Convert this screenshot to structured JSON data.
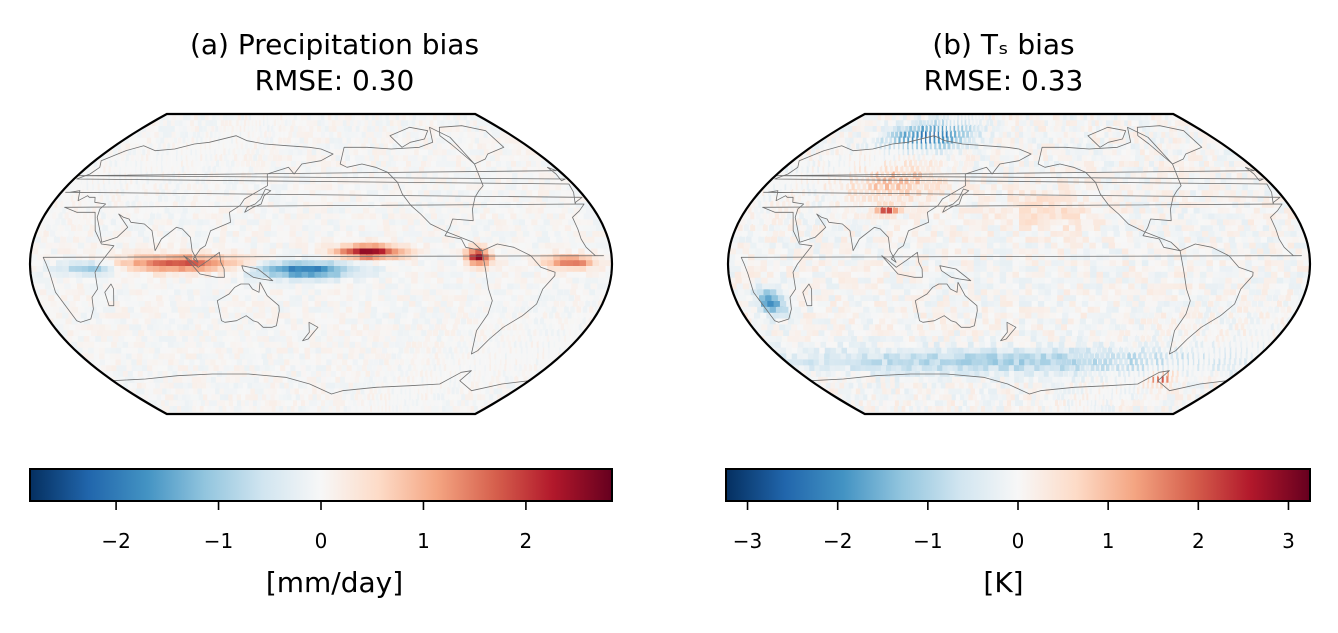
{
  "chart_data": [
    {
      "type": "heatmap",
      "panel": "a",
      "title": "(a) Precipitation bias",
      "subtitle": "RMSE: 0.30",
      "projection": "Robinson, centered on Pacific",
      "colormap": "RdBu_r",
      "colorbar": {
        "label": "[mm/day]",
        "range": [
          -2.85,
          2.85
        ],
        "ticks": [
          -2,
          -1,
          0,
          1,
          2
        ],
        "tick_labels": [
          "−2",
          "−1",
          "0",
          "1",
          "2"
        ]
      },
      "features": [
        {
          "description": "positive bias along northern ITCZ, east Pacific",
          "lon": [
            190,
            230
          ],
          "lat": [
            4,
            12
          ],
          "value": 2.5
        },
        {
          "description": "negative bias in western/central equatorial Pacific",
          "lon": [
            140,
            200
          ],
          "lat": [
            -8,
            2
          ],
          "value": -2.0
        },
        {
          "description": "positive bias over Indian Ocean / Maritime Continent",
          "lon": [
            55,
            130
          ],
          "lat": [
            -4,
            6
          ],
          "value": 1.8
        },
        {
          "description": "positive bias near Panama / east Pacific coast",
          "lon": [
            270,
            285
          ],
          "lat": [
            0,
            10
          ],
          "value": 2.4
        },
        {
          "description": "positive bias equatorial Atlantic",
          "lon": [
            320,
            350
          ],
          "lat": [
            -2,
            6
          ],
          "value": 1.6
        },
        {
          "description": "negative bias equatorial Africa / west Indian Ocean",
          "lon": [
            20,
            55
          ],
          "lat": [
            -6,
            2
          ],
          "value": -1.2
        }
      ]
    },
    {
      "type": "heatmap",
      "panel": "b",
      "title": "(b) Tₛ bias",
      "subtitle": "RMSE: 0.33",
      "projection": "Robinson, centered on Pacific",
      "colormap": "RdBu_r",
      "colorbar": {
        "label": "[K]",
        "range": [
          -3.25,
          3.25
        ],
        "ticks": [
          -3,
          -2,
          -1,
          0,
          1,
          2,
          3
        ],
        "tick_labels": [
          "−3",
          "−2",
          "−1",
          "0",
          "1",
          "2",
          "3"
        ]
      },
      "features": [
        {
          "description": "cold bias over Arctic / Siberian coast",
          "lon": [
            60,
            130
          ],
          "lat": [
            70,
            85
          ],
          "value": -2.5
        },
        {
          "description": "warm bias over Eurasia interior",
          "lon": [
            60,
            120
          ],
          "lat": [
            40,
            60
          ],
          "value": 1.0
        },
        {
          "description": "warm bias Tibetan plateau",
          "lon": [
            85,
            100
          ],
          "lat": [
            30,
            36
          ],
          "value": 2.0
        },
        {
          "description": "cold bias southern Africa",
          "lon": [
            15,
            30
          ],
          "lat": [
            -30,
            -15
          ],
          "value": -2.0
        },
        {
          "description": "cold bias Southern Ocean",
          "lon": [
            0,
            360
          ],
          "lat": [
            -65,
            -50
          ],
          "value": -1.0
        },
        {
          "description": "warm bias near Antarctic Peninsula",
          "lon": [
            290,
            310
          ],
          "lat": [
            -72,
            -64
          ],
          "value": 2.0
        },
        {
          "description": "slight warm bias northern Pacific",
          "lon": [
            170,
            230
          ],
          "lat": [
            20,
            45
          ],
          "value": 0.5
        }
      ]
    }
  ]
}
